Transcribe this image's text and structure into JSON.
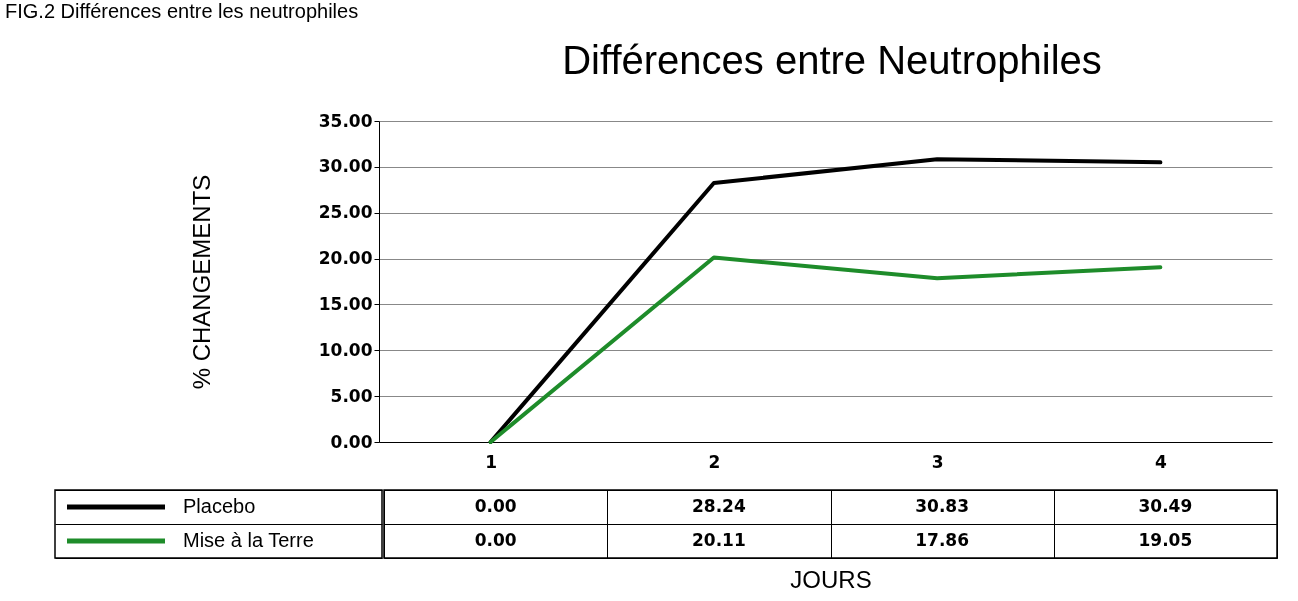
{
  "chart_data": {
    "type": "line",
    "title": "Différences entre Neutrophiles",
    "xlabel": "JOURS",
    "ylabel": "% CHANGEMENTS",
    "annotations": [
      "FIG.2 Différences entre les neutrophiles"
    ],
    "categories": [
      "1",
      "2",
      "3",
      "4"
    ],
    "series": [
      {
        "name": "Placebo",
        "color": "#000000",
        "values": [
          0,
          28.24,
          30.83,
          30.49
        ],
        "value_labels": [
          "0.00",
          "28.24",
          "30.83",
          "30.49"
        ]
      },
      {
        "name": "Mise à la Terre",
        "color": "#1e8c2a",
        "values": [
          0,
          20.11,
          17.86,
          19.05
        ],
        "value_labels": [
          "0.00",
          "20.11",
          "17.86",
          "19.05"
        ]
      }
    ],
    "ylim": [
      0,
      35
    ],
    "yticks": [
      {
        "value": 0,
        "label": "0.00"
      },
      {
        "value": 5,
        "label": "5.00"
      },
      {
        "value": 10,
        "label": "10.00"
      },
      {
        "value": 15,
        "label": "15.00"
      },
      {
        "value": 20,
        "label": "20.00"
      },
      {
        "value": 25,
        "label": "25.00"
      },
      {
        "value": 30,
        "label": "30.00"
      },
      {
        "value": 35,
        "label": "35.00"
      }
    ],
    "grid": "y",
    "legend": "bottom"
  }
}
